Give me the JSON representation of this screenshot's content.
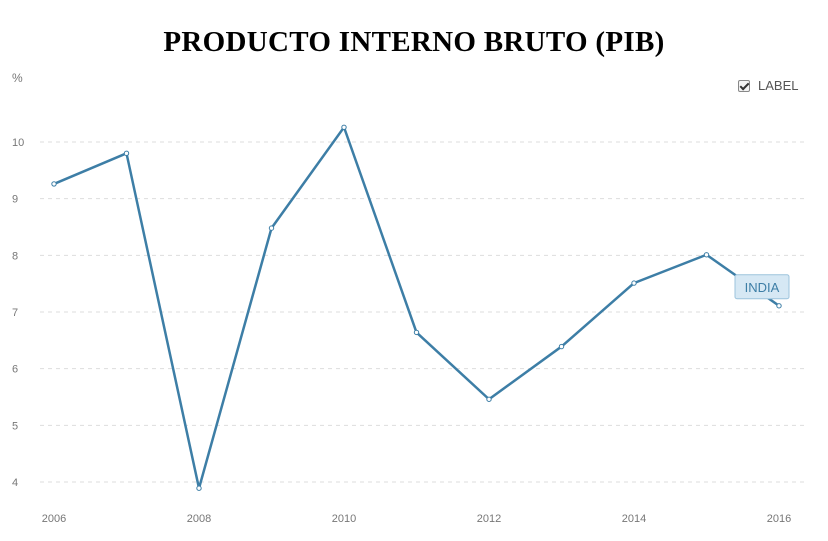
{
  "chart_data": {
    "type": "line",
    "title": "PRODUCTO INTERNO BRUTO (PIB)",
    "ylabel": "%",
    "xlabel": "",
    "x": [
      2006,
      2007,
      2008,
      2009,
      2010,
      2011,
      2012,
      2013,
      2014,
      2015,
      2016
    ],
    "series": [
      {
        "name": "INDIA",
        "values": [
          9.26,
          9.8,
          3.89,
          8.48,
          10.26,
          6.64,
          5.46,
          6.39,
          7.51,
          8.01,
          7.11
        ]
      }
    ],
    "xticks": [
      2006,
      2008,
      2010,
      2012,
      2014,
      2016
    ],
    "yticks": [
      4,
      5,
      6,
      7,
      8,
      9,
      10
    ],
    "xlim": [
      2006,
      2016
    ],
    "ylim": [
      3.8,
      10.5
    ],
    "grid": true,
    "line_color": "#3d7ea6",
    "grid_color": "#dddddd"
  },
  "toggle": {
    "label": "LABEL",
    "checked": true
  }
}
